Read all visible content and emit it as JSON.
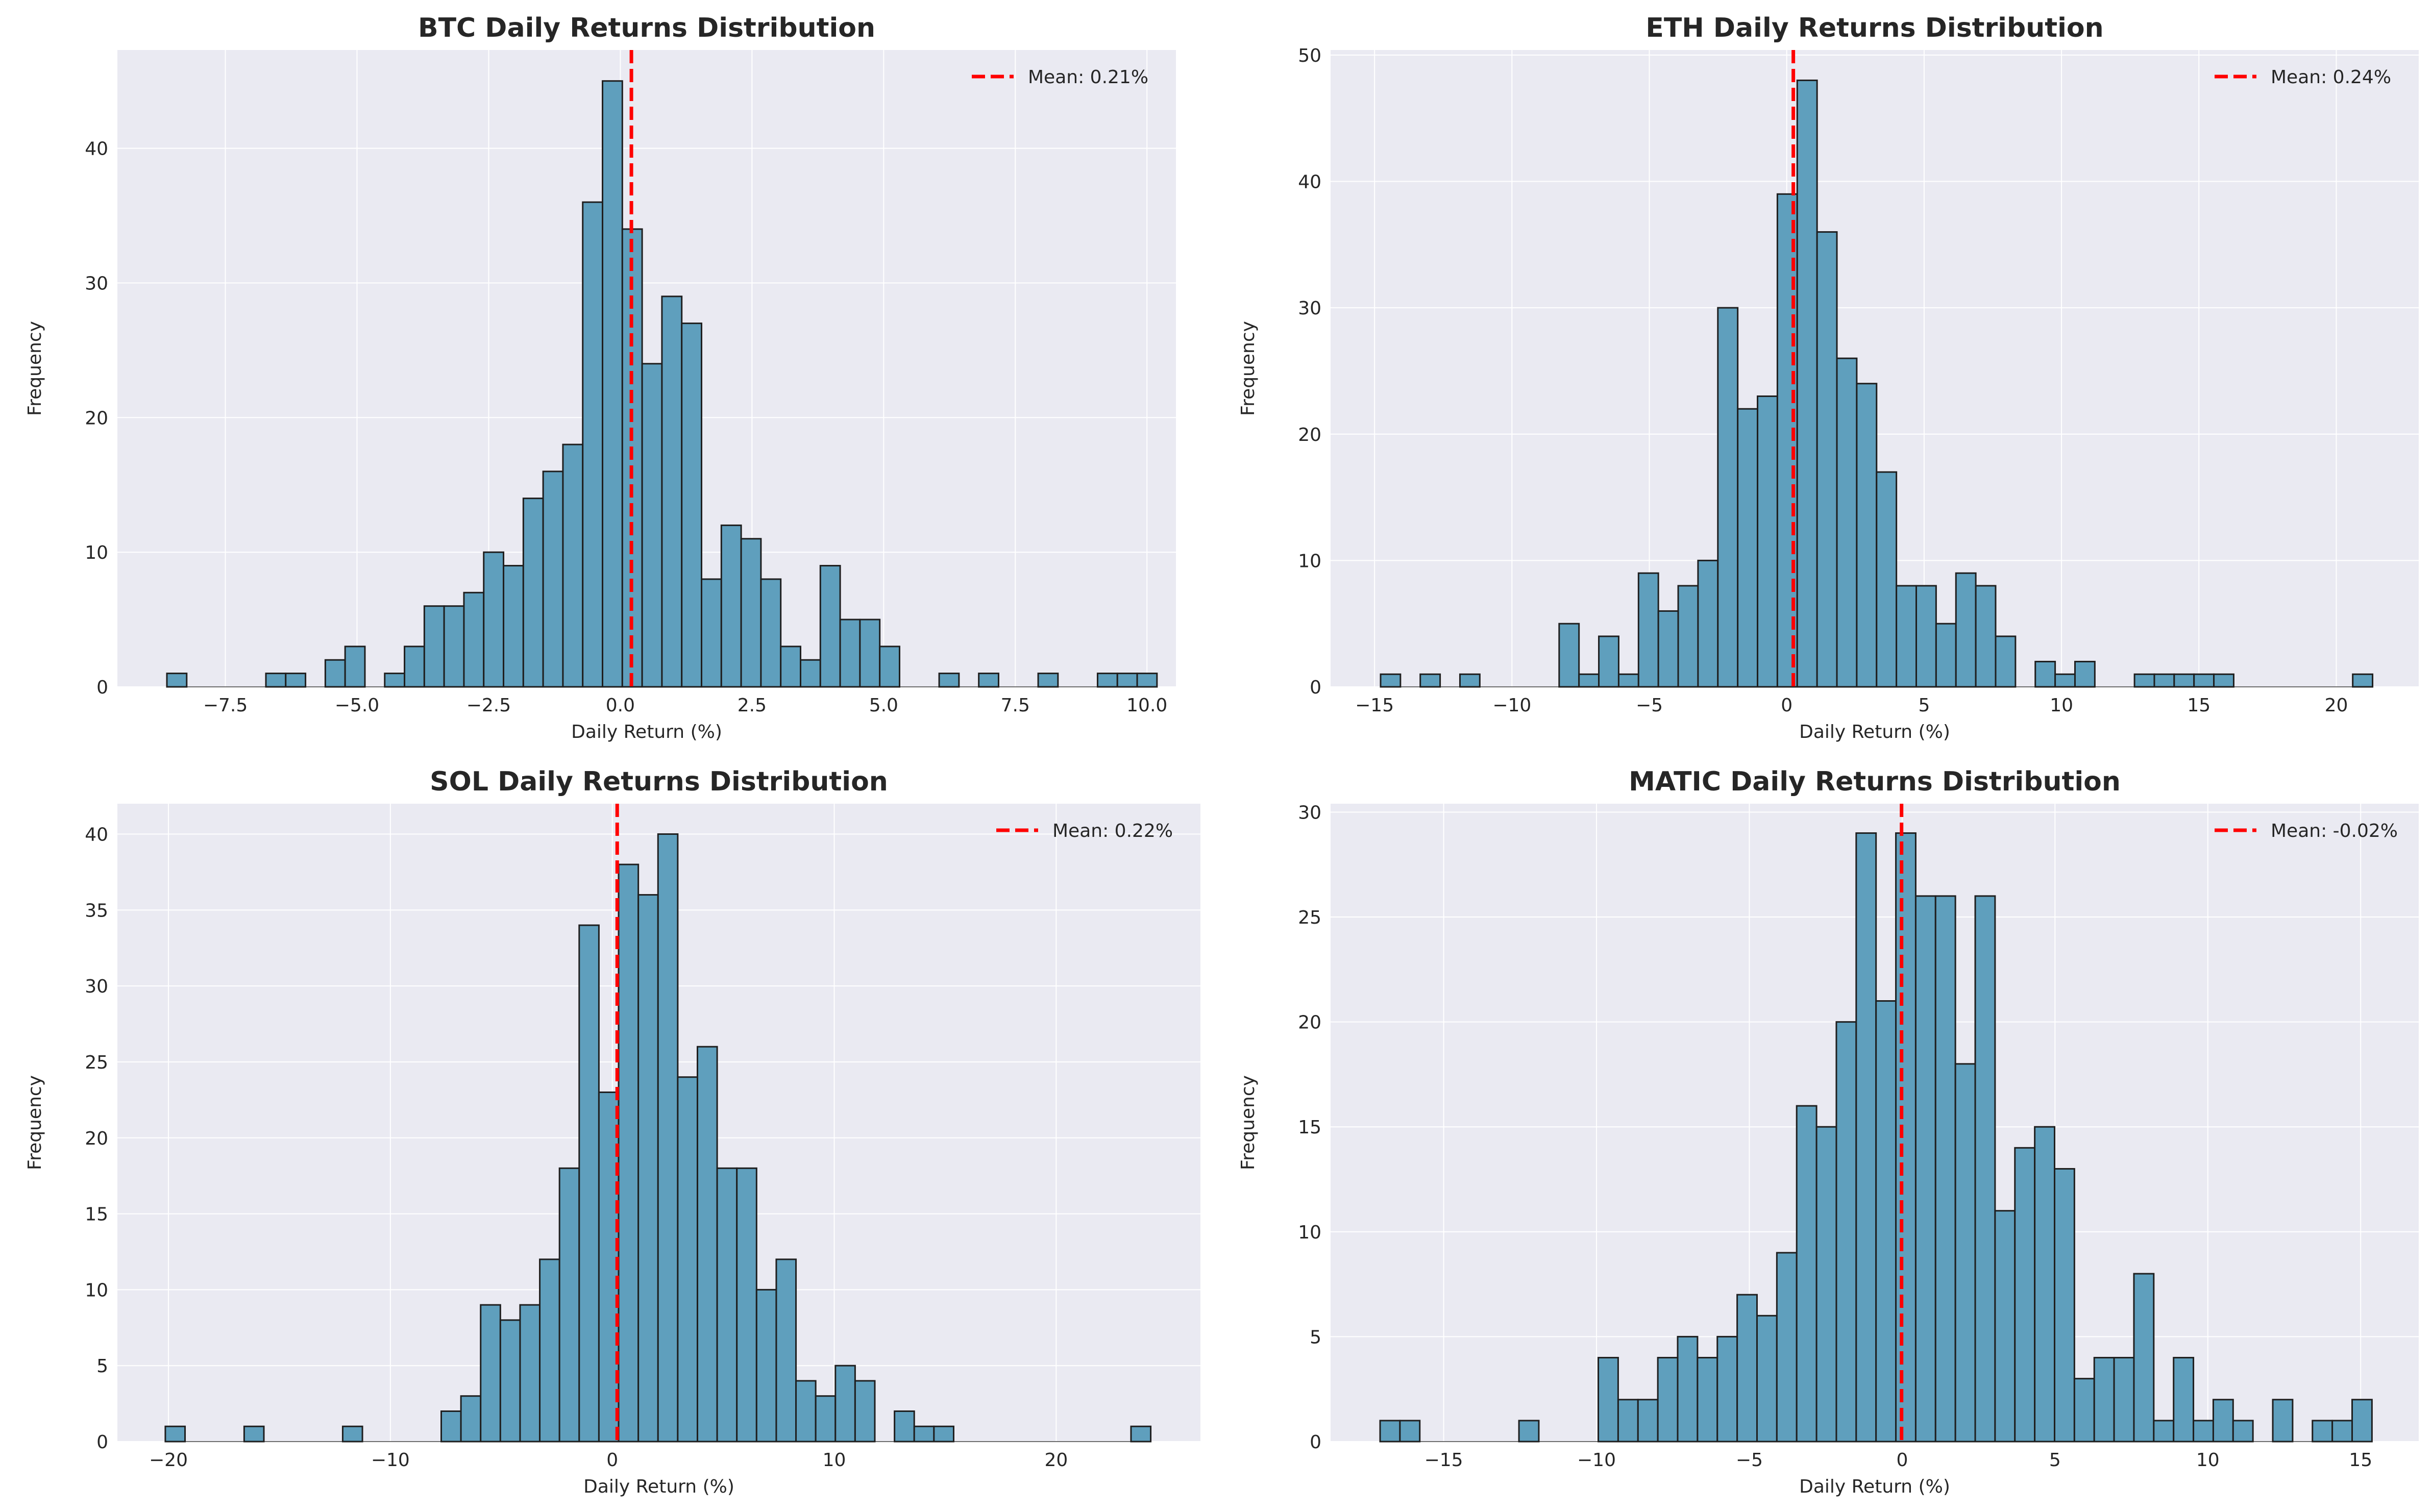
{
  "chart_data": [
    {
      "type": "bar",
      "title": "BTC Daily Returns Distribution",
      "xlabel": "Daily Return (%)",
      "ylabel": "Frequency",
      "bin_start": -8.61,
      "bin_width": 0.376,
      "values": [
        1,
        0,
        0,
        0,
        0,
        1,
        1,
        0,
        2,
        3,
        0,
        1,
        3,
        6,
        6,
        7,
        10,
        9,
        14,
        16,
        18,
        36,
        45,
        34,
        24,
        29,
        27,
        8,
        12,
        11,
        8,
        3,
        2,
        9,
        5,
        5,
        3,
        0,
        0,
        1,
        0,
        1,
        0,
        0,
        1,
        0,
        0,
        1,
        1,
        1
      ],
      "xlim": [
        -9.55,
        10.55
      ],
      "ylim": [
        0,
        47.3
      ],
      "xticks": [
        -7.5,
        -5.0,
        -2.5,
        0.0,
        2.5,
        5.0,
        7.5,
        10.0
      ],
      "xtick_labels": [
        "−7.5",
        "−5.0",
        "−2.5",
        "0.0",
        "2.5",
        "5.0",
        "7.5",
        "10.0"
      ],
      "yticks": [
        0,
        10,
        20,
        30,
        40
      ],
      "ytick_labels": [
        "0",
        "10",
        "20",
        "30",
        "40"
      ],
      "mean": 0.21,
      "legend": "Mean: 0.21%",
      "legend_position": "top-right",
      "grid": true
    },
    {
      "type": "bar",
      "title": "ETH Daily Returns Distribution",
      "xlabel": "Daily Return (%)",
      "ylabel": "Frequency",
      "bin_start": -14.78,
      "bin_width": 0.722,
      "values": [
        1,
        0,
        1,
        0,
        1,
        0,
        0,
        0,
        0,
        5,
        1,
        4,
        1,
        9,
        6,
        8,
        10,
        30,
        22,
        23,
        39,
        48,
        36,
        26,
        24,
        17,
        8,
        8,
        5,
        9,
        8,
        4,
        0,
        2,
        1,
        2,
        0,
        0,
        1,
        1,
        1,
        1,
        1,
        0,
        0,
        0,
        0,
        0,
        0,
        1
      ],
      "xlim": [
        -16.6,
        23.0
      ],
      "ylim": [
        0,
        50.4
      ],
      "xticks": [
        -15,
        -10,
        -5,
        0,
        5,
        10,
        15,
        20
      ],
      "xtick_labels": [
        "−15",
        "−10",
        "−5",
        "0",
        "5",
        "10",
        "15",
        "20"
      ],
      "yticks": [
        0,
        10,
        20,
        30,
        40,
        50
      ],
      "ytick_labels": [
        "0",
        "10",
        "20",
        "30",
        "40",
        "50"
      ],
      "mean": 0.24,
      "legend": "Mean: 0.24%",
      "legend_position": "top-right",
      "grid": true
    },
    {
      "type": "bar",
      "title": "SOL Daily Returns Distribution",
      "xlabel": "Daily Return (%)",
      "ylabel": "Frequency",
      "bin_start": -20.14,
      "bin_width": 0.888,
      "values": [
        1,
        0,
        0,
        0,
        1,
        0,
        0,
        0,
        0,
        1,
        0,
        0,
        0,
        0,
        2,
        3,
        9,
        8,
        9,
        12,
        18,
        34,
        23,
        38,
        36,
        40,
        24,
        26,
        18,
        18,
        10,
        12,
        4,
        3,
        5,
        4,
        0,
        2,
        1,
        1,
        0,
        0,
        0,
        0,
        0,
        0,
        0,
        0,
        0,
        1
      ],
      "xlim": [
        -22.3,
        26.5
      ],
      "ylim": [
        0,
        42.0
      ],
      "xticks": [
        -20,
        -10,
        0,
        10,
        20
      ],
      "xtick_labels": [
        "−20",
        "−10",
        "0",
        "10",
        "20"
      ],
      "yticks": [
        0,
        5,
        10,
        15,
        20,
        25,
        30,
        35,
        40
      ],
      "ytick_labels": [
        "0",
        "5",
        "10",
        "15",
        "20",
        "25",
        "30",
        "35",
        "40"
      ],
      "mean": 0.22,
      "legend": "Mean: 0.22%",
      "legend_position": "top-right",
      "grid": true
    },
    {
      "type": "bar",
      "title": "MATIC Daily Returns Distribution",
      "xlabel": "Daily Return (%)",
      "ylabel": "Frequency",
      "bin_start": -17.08,
      "bin_width": 0.649,
      "values": [
        1,
        1,
        0,
        0,
        0,
        0,
        0,
        1,
        0,
        0,
        0,
        4,
        2,
        2,
        4,
        5,
        4,
        5,
        7,
        6,
        9,
        16,
        15,
        20,
        29,
        21,
        29,
        26,
        26,
        18,
        26,
        11,
        14,
        15,
        13,
        3,
        4,
        4,
        8,
        1,
        4,
        1,
        2,
        1,
        0,
        2,
        0,
        1,
        1,
        2
      ],
      "xlim": [
        -18.7,
        16.9
      ],
      "ylim": [
        0,
        30.4
      ],
      "xticks": [
        -15,
        -10,
        -5,
        0,
        5,
        10,
        15
      ],
      "xtick_labels": [
        "−15",
        "−10",
        "−5",
        "0",
        "5",
        "10",
        "15"
      ],
      "yticks": [
        0,
        5,
        10,
        15,
        20,
        25,
        30
      ],
      "ytick_labels": [
        "0",
        "5",
        "10",
        "15",
        "20",
        "25",
        "30"
      ],
      "mean": -0.02,
      "legend": "Mean: -0.02%",
      "legend_position": "top-right",
      "grid": true
    }
  ],
  "colors": {
    "background": "#eaeaf2",
    "bar_fill": "#5f9fbd",
    "bar_edge": "#1f1f1f",
    "mean_line": "#ff0000",
    "grid": "#ffffff"
  }
}
